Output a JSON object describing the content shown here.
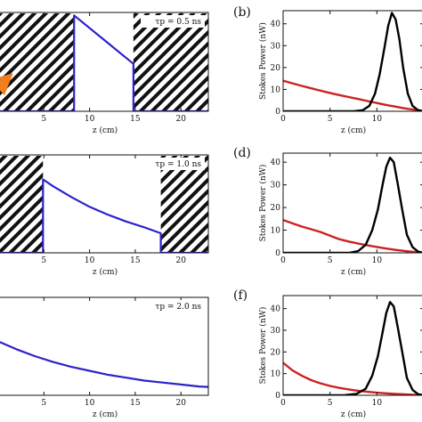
{
  "chart_data": [
    {
      "type": "line",
      "panel": "left",
      "tau_label": "τp = 0.5 ns",
      "xlabel": "z (cm)",
      "xlim": [
        0,
        23
      ],
      "ylim": [
        0,
        1
      ],
      "xticks": [
        5,
        10,
        15,
        20
      ],
      "hatched_regions": [
        [
          0,
          8.3
        ],
        [
          14.8,
          23
        ]
      ],
      "series": [
        {
          "x": [
            8.3,
            8.3,
            14.8,
            14.8,
            23
          ],
          "values": [
            0,
            0.97,
            0.48,
            0,
            0
          ],
          "color": "#2b22cc"
        },
        {
          "x": [
            0,
            8.3
          ],
          "values": [
            0,
            0
          ],
          "color": "#2b22cc"
        }
      ],
      "marker_arrow": {
        "from": [
          0,
          0.25
        ],
        "to": [
          1.2,
          0.35
        ],
        "color": "#f07e20"
      }
    },
    {
      "type": "line",
      "panel": "right",
      "label": "(b)",
      "xlabel": "z (cm)",
      "ylabel": "Stokes Power (nW)",
      "xlim": [
        0,
        15
      ],
      "ylim": [
        0,
        46
      ],
      "xticks": [
        0,
        5,
        10
      ],
      "yticks": [
        0,
        10,
        20,
        30,
        40
      ],
      "series": [
        {
          "x": [
            0,
            1,
            2,
            3,
            4,
            5,
            6,
            7,
            8,
            9,
            10,
            11,
            12,
            13,
            14,
            15
          ],
          "values": [
            14,
            12.8,
            11.6,
            10.5,
            9.4,
            8.4,
            7.4,
            6.5,
            5.6,
            4.7,
            3.8,
            2.9,
            2.1,
            1.3,
            0.7,
            0.2
          ],
          "color": "#cc2222"
        },
        {
          "x": [
            0,
            7.5,
            8.5,
            9.2,
            9.8,
            10.3,
            10.8,
            11.2,
            11.6,
            12,
            12.4,
            12.8,
            13.3,
            13.8,
            14.4,
            15
          ],
          "values": [
            0,
            0,
            0.5,
            2.5,
            8,
            17,
            29,
            39,
            45,
            42,
            33,
            20,
            8,
            2.5,
            0.5,
            0
          ],
          "color": "#000000"
        }
      ]
    },
    {
      "type": "line",
      "panel": "left",
      "tau_label": "τp = 1.0 ns",
      "xlabel": "z (cm)",
      "xlim": [
        0,
        23
      ],
      "ylim": [
        0,
        1
      ],
      "xticks": [
        5,
        10,
        15,
        20
      ],
      "hatched_regions": [
        [
          0,
          4.9
        ],
        [
          17.8,
          23
        ]
      ],
      "series": [
        {
          "x": [
            4.9,
            4.9,
            6,
            8,
            10,
            12,
            14,
            16,
            17.8,
            17.8,
            23
          ],
          "values": [
            0,
            0.75,
            0.68,
            0.57,
            0.47,
            0.39,
            0.32,
            0.26,
            0.2,
            0,
            0
          ],
          "color": "#2b22cc"
        },
        {
          "x": [
            0,
            4.9
          ],
          "values": [
            0,
            0
          ],
          "color": "#2b22cc"
        }
      ]
    },
    {
      "type": "line",
      "panel": "right",
      "label": "(d)",
      "xlabel": "z (cm)",
      "ylabel": "Stokes Power (nW)",
      "xlim": [
        0,
        15
      ],
      "ylim": [
        0,
        44
      ],
      "xticks": [
        0,
        5,
        10
      ],
      "yticks": [
        0,
        10,
        20,
        30,
        40
      ],
      "series": [
        {
          "x": [
            0,
            1,
            2,
            3,
            4,
            5,
            6,
            7,
            8,
            9,
            10,
            11,
            12,
            13,
            14,
            15
          ],
          "values": [
            14.5,
            13,
            11.6,
            10.4,
            9.2,
            7.6,
            6,
            5,
            4.1,
            3.3,
            2.6,
            1.9,
            1.3,
            0.8,
            0.4,
            0.1
          ],
          "color": "#cc2222"
        },
        {
          "x": [
            0,
            7,
            8,
            8.8,
            9.5,
            10.1,
            10.6,
            11,
            11.4,
            11.8,
            12.2,
            12.7,
            13.2,
            13.8,
            14.4,
            15
          ],
          "values": [
            0,
            0,
            0.8,
            3.5,
            10,
            19,
            30,
            38,
            42,
            40,
            31,
            19,
            8,
            2.5,
            0.5,
            0
          ],
          "color": "#000000"
        }
      ]
    },
    {
      "type": "line",
      "panel": "left",
      "tau_label": "τp = 2.0 ns",
      "xlabel": "z (cm)",
      "xlim": [
        0,
        23
      ],
      "ylim": [
        0,
        1
      ],
      "xticks": [
        5,
        10,
        15,
        20
      ],
      "hatched_regions": [],
      "series": [
        {
          "x": [
            0,
            2,
            4,
            6,
            8,
            10,
            12,
            14,
            16,
            18,
            20,
            22,
            23
          ],
          "values": [
            0.55,
            0.47,
            0.4,
            0.34,
            0.29,
            0.25,
            0.21,
            0.18,
            0.15,
            0.13,
            0.11,
            0.09,
            0.085
          ],
          "color": "#2b22cc"
        }
      ]
    },
    {
      "type": "line",
      "panel": "right",
      "label": "(f)",
      "xlabel": "z (cm)",
      "ylabel": "Stokes Power (nW)",
      "xlim": [
        0,
        15
      ],
      "ylim": [
        0,
        46
      ],
      "xticks": [
        0,
        5,
        10
      ],
      "yticks": [
        0,
        10,
        20,
        30,
        40
      ],
      "series": [
        {
          "x": [
            0,
            1,
            2,
            3,
            4,
            5,
            6,
            7,
            8,
            9,
            10,
            11,
            12,
            13,
            14,
            15
          ],
          "values": [
            15,
            11.5,
            9,
            7,
            5.5,
            4.3,
            3.4,
            2.7,
            2.1,
            1.6,
            1.2,
            0.9,
            0.6,
            0.4,
            0.2,
            0.1
          ],
          "color": "#cc2222"
        },
        {
          "x": [
            0,
            6.5,
            7.8,
            8.8,
            9.5,
            10.1,
            10.6,
            11,
            11.4,
            11.8,
            12.2,
            12.7,
            13.2,
            13.8,
            14.4,
            15
          ],
          "values": [
            0,
            0,
            0.6,
            3,
            9,
            18,
            29,
            38,
            43,
            41,
            32,
            20,
            8,
            2.5,
            0.5,
            0
          ],
          "color": "#000000"
        }
      ]
    }
  ]
}
